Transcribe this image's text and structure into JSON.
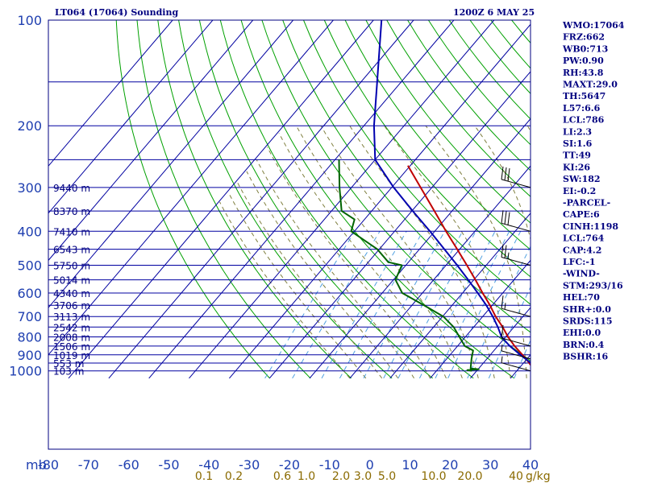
{
  "header": {
    "title": "LT064 (17064) Sounding",
    "time": "1200Z  6 MAY 25"
  },
  "indices": [
    "WMO:17064",
    "FRZ:662",
    "WB0:713",
    "PW:0.90",
    "RH:43.8",
    "MAXT:29.0",
    "TH:5647",
    "L57:6.6",
    "LCL:786",
    "LI:2.3",
    "SI:1.6",
    "TT:49",
    "KI:26",
    "SW:182",
    "EI:-0.2",
    "-PARCEL-",
    "CAPE:6",
    "CINH:1198",
    "LCL:764",
    "CAP:4.2",
    "LFC:-1",
    "-WIND-",
    "STM:293/16",
    "HEL:70",
    "SHR+:0.0",
    "SRDS:115",
    "EHI:0.0",
    "BRN:0.4",
    "BSHR:16"
  ],
  "chart_data": {
    "type": "line",
    "subtype": "skew-T log-P sounding",
    "pressure_axis": {
      "unit_label": "mb",
      "ticks": [
        "100",
        "200",
        "300",
        "400",
        "500",
        "600",
        "700",
        "800",
        "900",
        "1000"
      ],
      "range": [
        100,
        1050
      ],
      "scale": "log"
    },
    "temperature_axis": {
      "ticks": [
        "-80",
        "-70",
        "-60",
        "-50",
        "-40",
        "-30",
        "-20",
        "-10",
        "0",
        "10",
        "20",
        "30",
        "40"
      ],
      "range": [
        -80,
        40
      ]
    },
    "mixing_ratio_axis": {
      "unit_label": "g/kg",
      "ticks": [
        "0.1",
        "0.2",
        "0.6",
        "1.0",
        "2.0",
        "3.0",
        "5.0",
        "10.0",
        "20.0",
        "40"
      ]
    },
    "heights": [
      {
        "p": 300,
        "label": "9440 m"
      },
      {
        "p": 350,
        "label": "8370 m"
      },
      {
        "p": 400,
        "label": "7410 m"
      },
      {
        "p": 450,
        "label": "6543 m"
      },
      {
        "p": 500,
        "label": "5750 m"
      },
      {
        "p": 550,
        "label": "5014 m"
      },
      {
        "p": 600,
        "label": "4340 m"
      },
      {
        "p": 650,
        "label": "3706 m"
      },
      {
        "p": 700,
        "label": "3113 m"
      },
      {
        "p": 750,
        "label": "2542 m"
      },
      {
        "p": 800,
        "label": "2008 m"
      },
      {
        "p": 850,
        "label": "1506 m"
      },
      {
        "p": 900,
        "label": "1019 m"
      },
      {
        "p": 950,
        "label": "553 m"
      },
      {
        "p": 1000,
        "label": "103 m"
      }
    ],
    "series": [
      {
        "color": "#c00000",
        "points": [
          [
            1000,
            24.5
          ],
          [
            925,
            19.8
          ],
          [
            850,
            14.2
          ],
          [
            800,
            10.6
          ],
          [
            750,
            7.2
          ],
          [
            700,
            3.2
          ],
          [
            650,
            -0.6
          ],
          [
            600,
            -5.0
          ],
          [
            550,
            -9.6
          ],
          [
            500,
            -14.8
          ],
          [
            450,
            -20.6
          ],
          [
            400,
            -27.2
          ],
          [
            350,
            -34.4
          ],
          [
            300,
            -42.8
          ],
          [
            260,
            -50.6
          ]
        ]
      },
      {
        "color": "#006400",
        "points": [
          [
            1000,
            8.8
          ],
          [
            995,
            7.5
          ],
          [
            990,
            10.2
          ],
          [
            985,
            8.0
          ],
          [
            925,
            6.2
          ],
          [
            875,
            4.8
          ],
          [
            850,
            1.8
          ],
          [
            800,
            -1.5
          ],
          [
            750,
            -5.0
          ],
          [
            700,
            -9.8
          ],
          [
            650,
            -17.0
          ],
          [
            600,
            -25.0
          ],
          [
            550,
            -29.5
          ],
          [
            500,
            -31.0
          ],
          [
            490,
            -35.0
          ],
          [
            450,
            -40.5
          ],
          [
            400,
            -50.8
          ],
          [
            370,
            -52.5
          ],
          [
            350,
            -57.5
          ],
          [
            300,
            -63.0
          ],
          [
            250,
            -69.0
          ]
        ]
      },
      {
        "color": "#0000b0",
        "points": [
          [
            1000,
            26.0
          ],
          [
            900,
            17.5
          ],
          [
            850,
            13.0
          ],
          [
            800,
            9.0
          ],
          [
            750,
            6.0
          ],
          [
            700,
            2.5
          ],
          [
            650,
            -1.5
          ],
          [
            600,
            -6.2
          ],
          [
            550,
            -11.4
          ],
          [
            500,
            -17.2
          ],
          [
            450,
            -23.8
          ],
          [
            400,
            -31.2
          ],
          [
            350,
            -39.8
          ],
          [
            300,
            -49.5
          ],
          [
            250,
            -60.0
          ],
          [
            200,
            -67.5
          ],
          [
            150,
            -76.0
          ],
          [
            100,
            -88.0
          ]
        ]
      }
    ],
    "wind_barbs": [
      {
        "p": 300,
        "flags": 0,
        "full": 3,
        "half": 0
      },
      {
        "p": 400,
        "flags": 0,
        "full": 3,
        "half": 0
      },
      {
        "p": 500,
        "flags": 0,
        "full": 2,
        "half": 1
      },
      {
        "p": 700,
        "flags": 0,
        "full": 1,
        "half": 1
      },
      {
        "p": 850,
        "flags": 0,
        "full": 1,
        "half": 0
      },
      {
        "p": 925,
        "flags": 0,
        "full": 0,
        "half": 1
      },
      {
        "p": 1000,
        "flags": 0,
        "full": 0,
        "half": 1
      }
    ],
    "colors": {
      "isobar": "#0000a0",
      "isotherm": "#0000a0",
      "dry_adiabat": "#00a000",
      "moist_adiabat": "#7f7f3f",
      "mixing_ratio": "#4fa0e0"
    }
  }
}
